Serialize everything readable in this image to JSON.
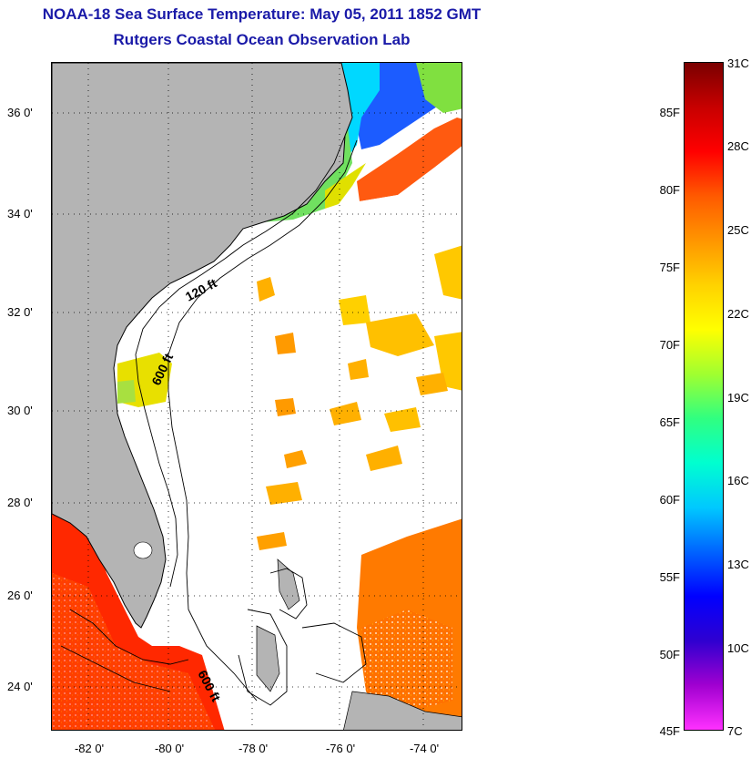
{
  "title": "NOAA-18 Sea Surface Temperature:  May 05, 2011 1852 GMT",
  "subtitle": "Rutgers Coastal Ocean Observation Lab",
  "map": {
    "lat_labels": [
      "36 0'",
      "34 0'",
      "32 0'",
      "30 0'",
      "28 0'",
      "26 0'",
      "24 0'"
    ],
    "lon_labels": [
      "-82 0'",
      "-80 0'",
      "-78 0'",
      "-76 0'",
      "-74 0'"
    ],
    "contour_labels": [
      "120 ft",
      "600 ft",
      "600 ft"
    ]
  },
  "colorbar": {
    "fahrenheit_labels": [
      "85F",
      "80F",
      "75F",
      "70F",
      "65F",
      "60F",
      "55F",
      "50F",
      "45F"
    ],
    "celsius_labels": [
      "31C",
      "28C",
      "25C",
      "22C",
      "19C",
      "16C",
      "13C",
      "10C",
      "7C"
    ],
    "colors": [
      "#7a0000",
      "#c80000",
      "#ff0000",
      "#ff5a00",
      "#ff9600",
      "#ffd200",
      "#ffff00",
      "#a0ff30",
      "#30ff80",
      "#00ffd0",
      "#00c8ff",
      "#0064ff",
      "#0000ff",
      "#3000d0",
      "#a000d0",
      "#ff30ff"
    ]
  },
  "colors": {
    "land": "#b4b4b4",
    "title": "#1a1aa8"
  }
}
